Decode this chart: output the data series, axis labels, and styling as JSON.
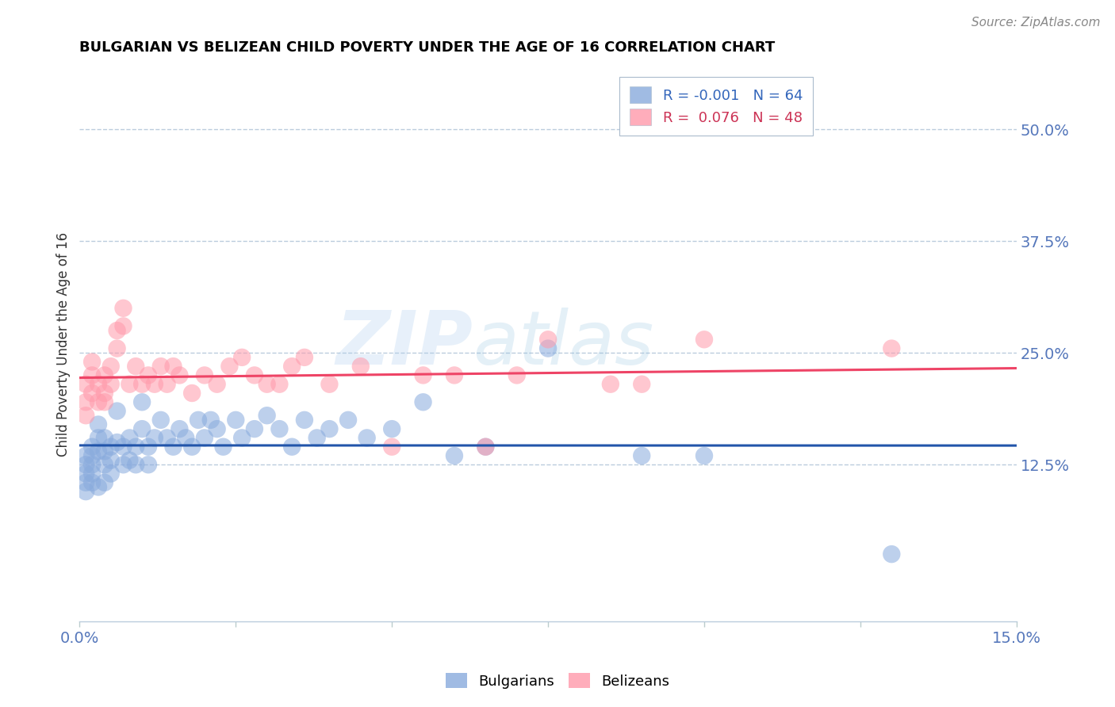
{
  "title": "BULGARIAN VS BELIZEAN CHILD POVERTY UNDER THE AGE OF 16 CORRELATION CHART",
  "source": "Source: ZipAtlas.com",
  "ylabel": "Child Poverty Under the Age of 16",
  "xlim": [
    0.0,
    0.15
  ],
  "ylim": [
    -0.05,
    0.57
  ],
  "yticks": [
    0.125,
    0.25,
    0.375,
    0.5
  ],
  "ytick_labels": [
    "12.5%",
    "25.0%",
    "37.5%",
    "50.0%"
  ],
  "xtick_positions": [
    0.0,
    0.025,
    0.05,
    0.075,
    0.1,
    0.125,
    0.15
  ],
  "xtick_labels": [
    "0.0%",
    "",
    "",
    "",
    "",
    "",
    "15.0%"
  ],
  "bulgarian_color": "#88AADD",
  "belizean_color": "#FF99AA",
  "bulgarian_line_color": "#2255AA",
  "belizean_line_color": "#EE4466",
  "legend_R_bulgarian": "-0.001",
  "legend_N_bulgarian": "64",
  "legend_R_belizean": "0.076",
  "legend_N_belizean": "48",
  "bulgarians_label": "Bulgarians",
  "belizeans_label": "Belizeans",
  "watermark_zip": "ZIP",
  "watermark_atlas": "atlas",
  "bulgarian_x": [
    0.001,
    0.001,
    0.001,
    0.001,
    0.001,
    0.002,
    0.002,
    0.002,
    0.002,
    0.002,
    0.003,
    0.003,
    0.003,
    0.003,
    0.004,
    0.004,
    0.004,
    0.004,
    0.005,
    0.005,
    0.005,
    0.006,
    0.006,
    0.007,
    0.007,
    0.008,
    0.008,
    0.009,
    0.009,
    0.01,
    0.01,
    0.011,
    0.011,
    0.012,
    0.013,
    0.014,
    0.015,
    0.016,
    0.017,
    0.018,
    0.019,
    0.02,
    0.021,
    0.022,
    0.023,
    0.025,
    0.026,
    0.028,
    0.03,
    0.032,
    0.034,
    0.036,
    0.038,
    0.04,
    0.043,
    0.046,
    0.05,
    0.055,
    0.06,
    0.065,
    0.075,
    0.09,
    0.1,
    0.13
  ],
  "bulgarian_y": [
    0.135,
    0.125,
    0.115,
    0.105,
    0.095,
    0.145,
    0.135,
    0.125,
    0.115,
    0.105,
    0.17,
    0.155,
    0.14,
    0.1,
    0.155,
    0.14,
    0.125,
    0.105,
    0.145,
    0.13,
    0.115,
    0.185,
    0.15,
    0.145,
    0.125,
    0.155,
    0.13,
    0.145,
    0.125,
    0.195,
    0.165,
    0.145,
    0.125,
    0.155,
    0.175,
    0.155,
    0.145,
    0.165,
    0.155,
    0.145,
    0.175,
    0.155,
    0.175,
    0.165,
    0.145,
    0.175,
    0.155,
    0.165,
    0.18,
    0.165,
    0.145,
    0.175,
    0.155,
    0.165,
    0.175,
    0.155,
    0.165,
    0.195,
    0.135,
    0.145,
    0.255,
    0.135,
    0.135,
    0.025
  ],
  "belizean_x": [
    0.001,
    0.001,
    0.001,
    0.002,
    0.002,
    0.002,
    0.003,
    0.003,
    0.004,
    0.004,
    0.004,
    0.005,
    0.005,
    0.006,
    0.006,
    0.007,
    0.007,
    0.008,
    0.009,
    0.01,
    0.011,
    0.012,
    0.013,
    0.014,
    0.015,
    0.016,
    0.018,
    0.02,
    0.022,
    0.024,
    0.026,
    0.028,
    0.03,
    0.032,
    0.034,
    0.036,
    0.04,
    0.045,
    0.05,
    0.055,
    0.06,
    0.065,
    0.07,
    0.075,
    0.085,
    0.09,
    0.1,
    0.13
  ],
  "belizean_y": [
    0.215,
    0.195,
    0.18,
    0.24,
    0.225,
    0.205,
    0.215,
    0.195,
    0.225,
    0.205,
    0.195,
    0.235,
    0.215,
    0.275,
    0.255,
    0.3,
    0.28,
    0.215,
    0.235,
    0.215,
    0.225,
    0.215,
    0.235,
    0.215,
    0.235,
    0.225,
    0.205,
    0.225,
    0.215,
    0.235,
    0.245,
    0.225,
    0.215,
    0.215,
    0.235,
    0.245,
    0.215,
    0.235,
    0.145,
    0.225,
    0.225,
    0.145,
    0.225,
    0.265,
    0.215,
    0.215,
    0.265,
    0.255
  ]
}
